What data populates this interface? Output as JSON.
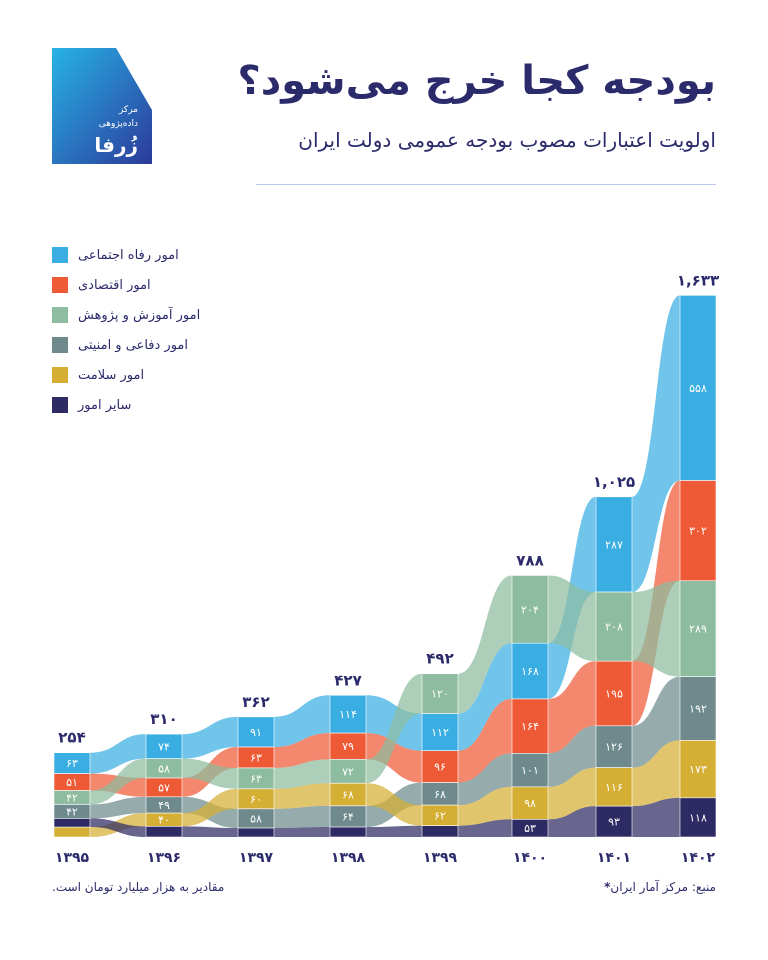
{
  "header": {
    "title": "بودجه کجا خرج می‌شود؟",
    "subtitle": "اولویت اعتبارات مصوب بودجه عمومی دولت ایران"
  },
  "logo": {
    "text_top": "مرکز",
    "text_mid": "داده‌پژوهی",
    "text_brand": "زُرفا"
  },
  "colors": {
    "welfare": "#3aaee3",
    "economic": "#ee5a36",
    "education": "#8ebca0",
    "defense": "#6e8a8c",
    "health": "#d5ae34",
    "other": "#2e2a63",
    "accent": "#2b2a6b"
  },
  "chart_data": {
    "type": "bar",
    "title": "بودجه کجا خرج می‌شود؟",
    "xlabel": "",
    "ylabel": "",
    "ylim": [
      0,
      1633
    ],
    "grid": false,
    "legend_position": "top-left",
    "categories": [
      "۱۳۹۵",
      "۱۳۹۶",
      "۱۳۹۷",
      "۱۳۹۸",
      "۱۳۹۹",
      "۱۴۰۰",
      "۱۴۰۱",
      "۱۴۰۲"
    ],
    "totals": [
      254,
      310,
      362,
      427,
      492,
      788,
      1025,
      1633
    ],
    "total_labels": [
      "۲۵۴",
      "۳۱۰",
      "۳۶۲",
      "۴۲۷",
      "۴۹۲",
      "۷۸۸",
      "۱,۰۲۵",
      "۱,۶۳۳"
    ],
    "series": [
      {
        "key": "welfare",
        "name": "امور رفاه اجتماعی",
        "values": [
          63,
          74,
          91,
          114,
          112,
          168,
          287,
          558
        ],
        "labels": [
          "۶۳",
          "۷۴",
          "۹۱",
          "۱۱۴",
          "۱۱۲",
          "۱۶۸",
          "۲۸۷",
          "۵۵۸"
        ]
      },
      {
        "key": "economic",
        "name": "امور اقتصادی",
        "values": [
          51,
          57,
          63,
          79,
          96,
          164,
          195,
          302
        ],
        "labels": [
          "۵۱",
          "۵۷",
          "۶۳",
          "۷۹",
          "۹۶",
          "۱۶۴",
          "۱۹۵",
          "۳۰۲"
        ]
      },
      {
        "key": "education",
        "name": "امور آموزش و پژوهش",
        "values": [
          42,
          58,
          63,
          72,
          120,
          204,
          208,
          289
        ],
        "labels": [
          "۴۲",
          "۵۸",
          "۶۳",
          "۷۲",
          "۱۲۰",
          "۲۰۴",
          "۲۰۸",
          "۲۸۹"
        ]
      },
      {
        "key": "defense",
        "name": "امور دفاعی و امنیتی",
        "values": [
          42,
          49,
          58,
          64,
          68,
          101,
          126,
          192
        ],
        "labels": [
          "۴۲",
          "۴۹",
          "۵۸",
          "۶۴",
          "۶۸",
          "۱۰۱",
          "۱۲۶",
          "۱۹۲"
        ]
      },
      {
        "key": "health",
        "name": "امور سلامت",
        "values": [
          30,
          40,
          60,
          68,
          62,
          98,
          116,
          173
        ],
        "labels": [
          "",
          "۴۰",
          "۶۰",
          "۶۸",
          "۶۲",
          "۹۸",
          "۱۱۶",
          "۱۷۳"
        ]
      },
      {
        "key": "other",
        "name": "سایر امور",
        "values": [
          26,
          32,
          27,
          30,
          34,
          53,
          93,
          118
        ],
        "labels": [
          "",
          "",
          "",
          "",
          "",
          "۵۳",
          "۹۳",
          "۱۱۸"
        ]
      }
    ],
    "stack_order": [
      [
        "welfare",
        "economic",
        "education",
        "defense",
        "other",
        "health"
      ],
      [
        "welfare",
        "education",
        "economic",
        "defense",
        "health",
        "other"
      ],
      [
        "welfare",
        "economic",
        "education",
        "health",
        "defense",
        "other"
      ],
      [
        "welfare",
        "economic",
        "education",
        "health",
        "defense",
        "other"
      ],
      [
        "education",
        "welfare",
        "economic",
        "defense",
        "health",
        "other"
      ],
      [
        "education",
        "welfare",
        "economic",
        "defense",
        "health",
        "other"
      ],
      [
        "welfare",
        "education",
        "economic",
        "defense",
        "health",
        "other"
      ],
      [
        "welfare",
        "economic",
        "education",
        "defense",
        "health",
        "other"
      ]
    ]
  },
  "footnotes": {
    "units": "مقادیر به هزار میلیارد تومان است.",
    "source": "منبع: مرکز آمار ایران",
    "star": "*"
  }
}
